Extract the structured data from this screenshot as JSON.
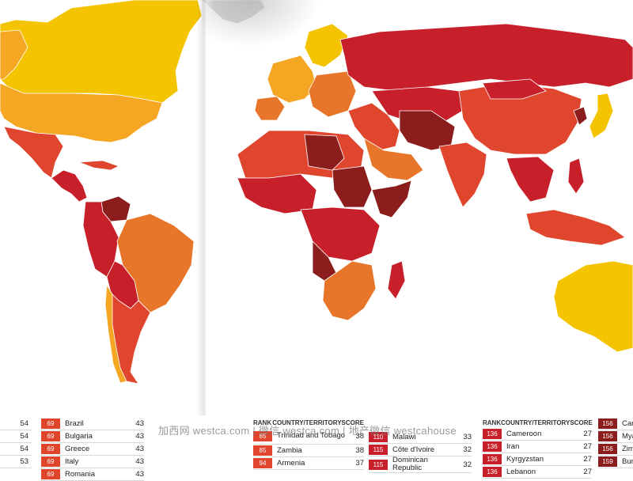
{
  "map": {
    "colors": {
      "ocean": "#ffffff",
      "greenland": "#d6d6d6",
      "very_clean": "#f5c400",
      "clean": "#f5a623",
      "mid": "#e8762a",
      "corrupt": "#e0452e",
      "very_corrupt": "#c8202b",
      "most_corrupt": "#8c1d1d"
    }
  },
  "tables": {
    "left_edge": {
      "scores": [
        "54",
        "54",
        "54",
        "53"
      ]
    },
    "col_a": {
      "rows": [
        {
          "rank": "69",
          "country": "Brazil",
          "score": "43"
        },
        {
          "rank": "69",
          "country": "Bulgaria",
          "score": "43"
        },
        {
          "rank": "69",
          "country": "Greece",
          "score": "43"
        },
        {
          "rank": "69",
          "country": "Italy",
          "score": "43"
        },
        {
          "rank": "69",
          "country": "Romania",
          "score": "43"
        }
      ]
    },
    "col_b": {
      "header": {
        "rank": "RANK",
        "country": "COUNTRY/TERRITORY",
        "score": "SCORE"
      },
      "rows": [
        {
          "rank": "85",
          "country": "Trinidad and Tobago",
          "score": "38"
        },
        {
          "rank": "85",
          "country": "Zambia",
          "score": "38"
        },
        {
          "rank": "94",
          "country": "Armenia",
          "score": "37"
        }
      ]
    },
    "col_c": {
      "rows": [
        {
          "rank": "110",
          "country": "Malawi",
          "score": "33"
        },
        {
          "rank": "115",
          "country": "Côte d'Ivoire",
          "score": "32"
        },
        {
          "rank": "115",
          "country": "Dominican Republic",
          "score": "32"
        }
      ]
    },
    "col_d": {
      "header": {
        "rank": "RANK",
        "country": "COUNTRY/TERRITORY",
        "score": "SCORE"
      },
      "rows": [
        {
          "rank": "136",
          "country": "Cameroon",
          "score": "27"
        },
        {
          "rank": "136",
          "country": "Iran",
          "score": "27"
        },
        {
          "rank": "136",
          "country": "Kyrgyzstan",
          "score": "27"
        },
        {
          "rank": "136",
          "country": "Lebanon",
          "score": "27"
        }
      ]
    },
    "col_e": {
      "rows": [
        {
          "rank": "156",
          "country": "Cam"
        },
        {
          "rank": "156",
          "country": "Mya"
        },
        {
          "rank": "156",
          "country": "Zim"
        },
        {
          "rank": "159",
          "country": "Bur"
        }
      ]
    }
  },
  "watermark": {
    "text": "加西网 westca.com | 微信 westca.com | 地产微信 westcahouse"
  }
}
